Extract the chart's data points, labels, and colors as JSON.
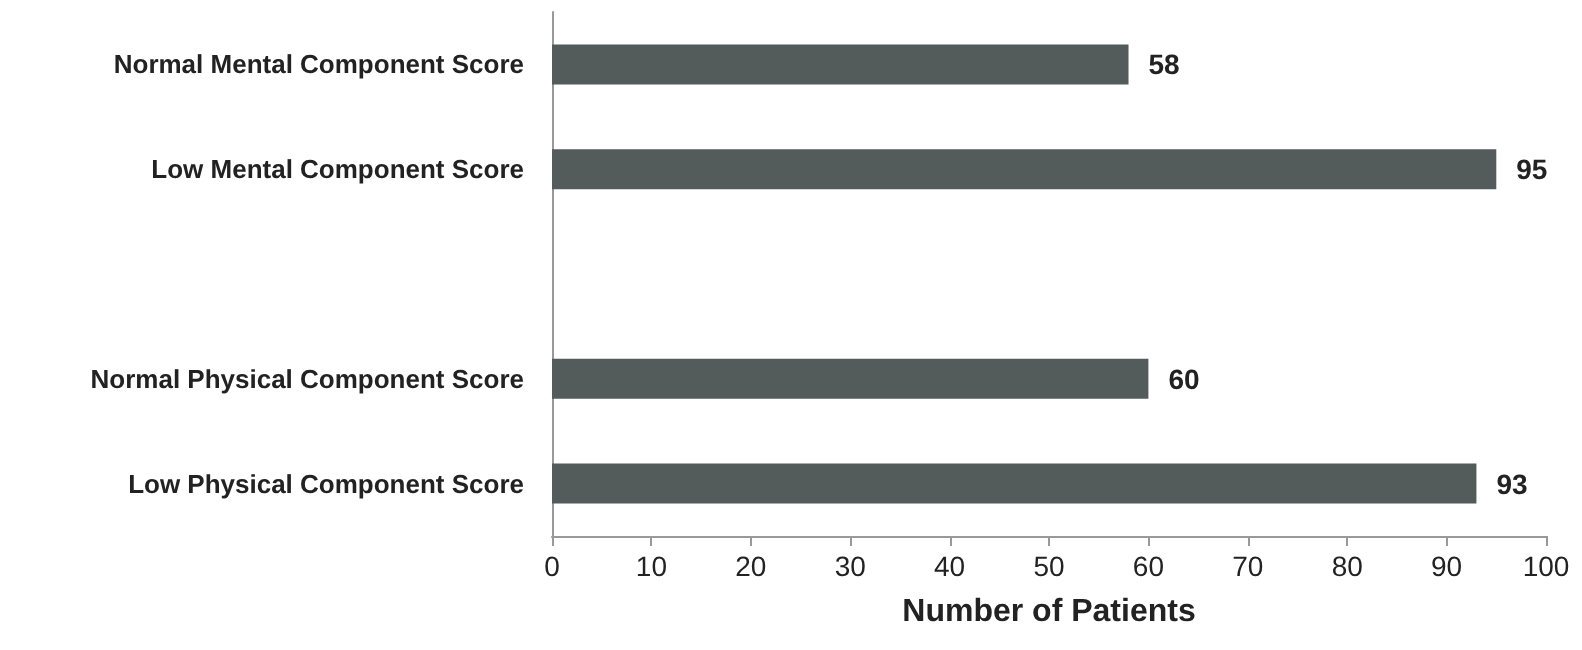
{
  "chart_data": {
    "type": "bar",
    "orientation": "horizontal",
    "xlabel": "Number of Patients",
    "categories": [
      "Normal Mental Component Score",
      "Low Mental Component Score",
      null,
      "Normal Physical Component Score",
      "Low Physical Component Score"
    ],
    "values": [
      58,
      95,
      null,
      60,
      93
    ],
    "color": "#535b5b",
    "xlim": [
      0,
      100
    ],
    "xticks": [
      0,
      10,
      20,
      30,
      40,
      50,
      60,
      70,
      80,
      90,
      100
    ],
    "grid": false,
    "data_labels": true
  }
}
